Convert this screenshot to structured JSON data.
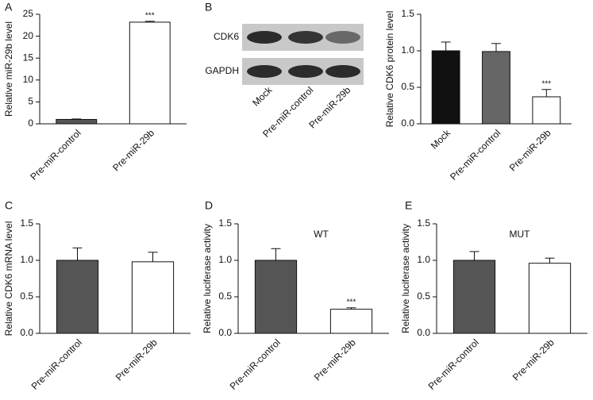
{
  "chart_data": [
    {
      "type": "bar",
      "panel": "A",
      "ylabel": "Relative miR-29b level",
      "categories": [
        "Pre-miR-control",
        "Pre-miR-29b"
      ],
      "values": [
        1.0,
        23.2
      ],
      "errors": [
        0.1,
        0.2
      ],
      "colors": [
        "#555555",
        "#ffffff"
      ],
      "significance": [
        null,
        "***"
      ],
      "ylim": [
        0,
        25
      ],
      "yticks": [
        0,
        5,
        10,
        15,
        20,
        25
      ]
    },
    {
      "type": "bar",
      "panel": "B",
      "ylabel": "Relative CDK6 protein level",
      "blot": {
        "bands": [
          "CDK6",
          "GAPDH"
        ],
        "lanes": [
          "Mock",
          "Pre-miR-control",
          "Pre-miR-29b"
        ]
      },
      "categories": [
        "Mock",
        "Pre-miR-control",
        "Pre-miR-29b"
      ],
      "values": [
        1.0,
        0.99,
        0.37
      ],
      "errors": [
        0.12,
        0.11,
        0.1
      ],
      "colors": [
        "#111111",
        "#666666",
        "#ffffff"
      ],
      "significance": [
        null,
        null,
        "***"
      ],
      "ylim": [
        0,
        1.5
      ],
      "yticks": [
        {
          "value": 0,
          "label": "0.0"
        },
        0.5,
        {
          "value": 1,
          "label": "1.0"
        },
        1.5
      ]
    },
    {
      "type": "bar",
      "panel": "C",
      "ylabel": "Relative CDK6 mRNA level",
      "categories": [
        "Pre-miR-control",
        "Pre-miR-29b"
      ],
      "values": [
        1.0,
        0.98
      ],
      "errors": [
        0.17,
        0.13
      ],
      "colors": [
        "#555555",
        "#ffffff"
      ],
      "significance": [
        null,
        null
      ],
      "ylim": [
        0,
        1.5
      ],
      "yticks": [
        {
          "value": 0,
          "label": "0.0"
        },
        0.5,
        {
          "value": 1,
          "label": "1.0"
        },
        1.5
      ]
    },
    {
      "type": "bar",
      "panel": "D",
      "ylabel": "Relative luciferase activity",
      "label": "WT",
      "categories": [
        "Pre-miR-control",
        "Pre-miR-29b"
      ],
      "values": [
        1.0,
        0.33
      ],
      "errors": [
        0.16,
        0.02
      ],
      "colors": [
        "#555555",
        "#ffffff"
      ],
      "significance": [
        null,
        "***"
      ],
      "ylim": [
        0,
        1.5
      ],
      "yticks": [
        {
          "value": 0,
          "label": "0.0"
        },
        0.5,
        {
          "value": 1,
          "label": "1.0"
        },
        1.5
      ]
    },
    {
      "type": "bar",
      "panel": "E",
      "ylabel": "Relative luciferase activity",
      "label": "MUT",
      "categories": [
        "Pre-miR-control",
        "Pre-miR-29b"
      ],
      "values": [
        1.0,
        0.96
      ],
      "errors": [
        0.12,
        0.07
      ],
      "colors": [
        "#555555",
        "#ffffff"
      ],
      "significance": [
        null,
        null
      ],
      "ylim": [
        0,
        1.5
      ],
      "yticks": [
        {
          "value": 0,
          "label": "0.0"
        },
        0.5,
        {
          "value": 1,
          "label": "1.0"
        },
        1.5
      ]
    }
  ]
}
